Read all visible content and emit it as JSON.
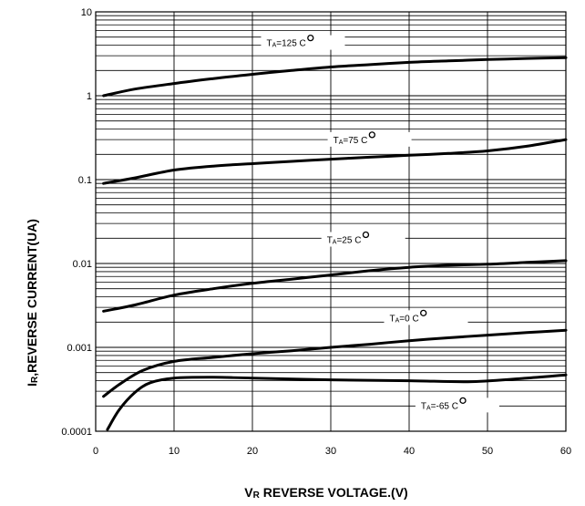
{
  "chart_data": {
    "type": "line",
    "xlabel_main": "V",
    "xlabel_sub": "R",
    "xlabel_rest": " REVERSE VOLTAGE.(V)",
    "ylabel_main": "I",
    "ylabel_sub": "R",
    "ylabel_rest": ",REVERSE CURRENT(UA)",
    "xlim": [
      0,
      60
    ],
    "ylim": [
      0.0001,
      10
    ],
    "yscale": "log",
    "grid": true,
    "x_ticks": [
      "0",
      "10",
      "20",
      "30",
      "40",
      "50",
      "60"
    ],
    "y_ticks": [
      "0.0001",
      "0.001",
      "0.01",
      "0.1",
      "1",
      "10"
    ],
    "series": [
      {
        "name": "TA=125 C°",
        "label_T": "T",
        "label_sub": "A",
        "label_val": "=125 ",
        "x": [
          1,
          5,
          10,
          15,
          20,
          25,
          30,
          35,
          40,
          45,
          50,
          55,
          60
        ],
        "y": [
          1.0,
          1.2,
          1.4,
          1.6,
          1.8,
          2.0,
          2.2,
          2.35,
          2.5,
          2.6,
          2.7,
          2.78,
          2.85
        ]
      },
      {
        "name": "TA=75 C°",
        "label_T": "T",
        "label_sub": "A",
        "label_val": "=75 ",
        "x": [
          1,
          5,
          10,
          15,
          20,
          25,
          30,
          35,
          40,
          45,
          50,
          55,
          60
        ],
        "y": [
          0.09,
          0.105,
          0.13,
          0.145,
          0.155,
          0.165,
          0.175,
          0.185,
          0.195,
          0.205,
          0.22,
          0.25,
          0.3
        ]
      },
      {
        "name": "TA=25 C°",
        "label_T": "T",
        "label_sub": "A",
        "label_val": "=25 ",
        "x": [
          1,
          5,
          10,
          15,
          20,
          25,
          30,
          35,
          40,
          45,
          50,
          55,
          60
        ],
        "y": [
          0.0027,
          0.0032,
          0.0042,
          0.005,
          0.0058,
          0.0065,
          0.0073,
          0.0082,
          0.009,
          0.0095,
          0.0098,
          0.0103,
          0.0108
        ]
      },
      {
        "name": "TA=0 C°",
        "label_T": "T",
        "label_sub": "A",
        "label_val": "=0 ",
        "x": [
          1,
          3,
          6,
          10,
          15,
          20,
          25,
          30,
          35,
          40,
          45,
          50,
          55,
          60
        ],
        "y": [
          0.00026,
          0.00036,
          0.00053,
          0.00068,
          0.00076,
          0.00084,
          0.00091,
          0.001,
          0.00109,
          0.0012,
          0.0013,
          0.0014,
          0.0015,
          0.0016
        ]
      },
      {
        "name": "TA=-65 C°",
        "label_T": "T",
        "label_sub": "A",
        "label_val": "=-65 ",
        "x": [
          1.5,
          3,
          5,
          7,
          10,
          15,
          20,
          30,
          40,
          48,
          55,
          60
        ],
        "y": [
          0.000105,
          0.00018,
          0.00029,
          0.00038,
          0.00043,
          0.00044,
          0.00043,
          0.00041,
          0.0004,
          0.00039,
          0.00043,
          0.00047
        ]
      }
    ],
    "label_degree_unit": "C",
    "label_positions_in_data_units": [
      {
        "x": 21.8,
        "y": 4.0
      },
      {
        "x": 30.3,
        "y": 0.28
      },
      {
        "x": 29.5,
        "y": 0.018
      },
      {
        "x": 37.5,
        "y": 0.0021
      },
      {
        "x": 41.5,
        "y": 0.00019
      }
    ]
  }
}
